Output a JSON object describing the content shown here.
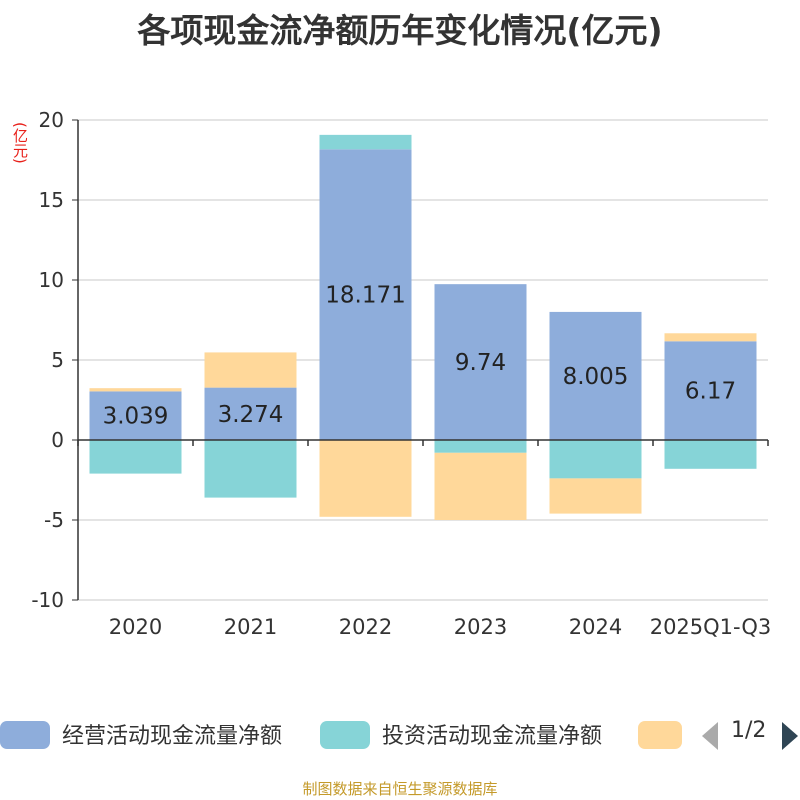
{
  "chart_data": {
    "type": "bar",
    "stacked": true,
    "title": "各项现金流净额历年变化情况(亿元)",
    "ylabel": "(亿元)",
    "xlabel": "",
    "ylim": [
      -10,
      20
    ],
    "yticks": [
      -10,
      -5,
      0,
      5,
      10,
      15,
      20
    ],
    "categories": [
      "2020",
      "2021",
      "2022",
      "2023",
      "2024",
      "2025Q1-Q3"
    ],
    "series": [
      {
        "name": "经营活动现金流量净额",
        "color": "#8eaddb",
        "values": [
          3.039,
          3.274,
          18.171,
          9.74,
          8.005,
          6.17
        ],
        "labels": [
          "3.039",
          "3.274",
          "18.171",
          "9.74",
          "8.005",
          "6.17"
        ]
      },
      {
        "name": "投资活动现金流量净额",
        "color": "#86d4d7",
        "values": [
          -2.1,
          -3.6,
          0.9,
          -0.8,
          -2.4,
          -1.8
        ]
      },
      {
        "name": "",
        "color": "#ffd89a",
        "values": [
          0.2,
          2.2,
          -4.8,
          -4.2,
          -2.2,
          0.5
        ]
      }
    ]
  },
  "legend": {
    "items": [
      {
        "label": "经营活动现金流量净额",
        "color": "#8eaddb"
      },
      {
        "label": "投资活动现金流量净额",
        "color": "#86d4d7"
      },
      {
        "label": "",
        "color": "#ffd89a"
      }
    ],
    "page": "1/2"
  },
  "source": "制图数据来自恒生聚源数据库"
}
